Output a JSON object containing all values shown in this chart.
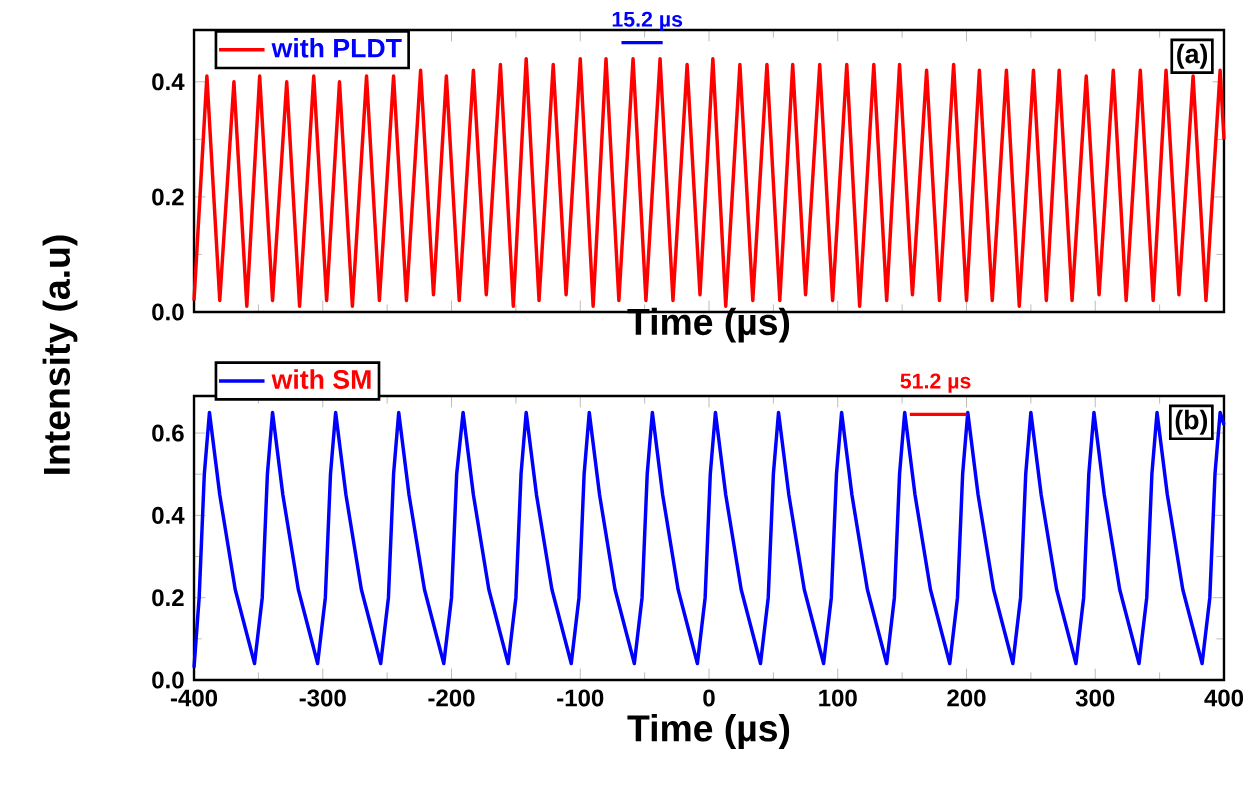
{
  "chart_data": [
    {
      "type": "line",
      "xlabel": "Time (µs)",
      "ylabel": "Intensity (a.u)",
      "legend": "top left",
      "tick_labels": "y",
      "xlim": [
        -400,
        400
      ],
      "xticks": [
        -400,
        -300,
        -200,
        -100,
        0,
        100,
        200,
        300,
        400
      ],
      "ylim": [
        0,
        0.49
      ],
      "yticks": [
        {
          "value": 0,
          "label": "0.0"
        },
        {
          "value": 0.2,
          "label": "0.2"
        },
        {
          "value": 0.4,
          "label": "0.4"
        }
      ],
      "annotations": [
        "15.2 µs",
        "(a)"
      ],
      "series": [
        {
          "name": "with PLDT",
          "color": "#ff0000",
          "x": [
            -400,
            -390,
            -380,
            -369,
            -359,
            -349,
            -339,
            -328,
            -318,
            -307,
            -297,
            -287,
            -277,
            -266,
            -256,
            -245,
            -235,
            -224,
            -214,
            -204,
            -194,
            -183,
            -173,
            -162,
            -152,
            -142,
            -132,
            -121,
            -111,
            -100,
            -90,
            -80,
            -70,
            -59,
            -49,
            -38,
            -28,
            -17,
            -7,
            3,
            13,
            24,
            34,
            45,
            55,
            65,
            75,
            86,
            96,
            107,
            117,
            128,
            138,
            148,
            158,
            169,
            179,
            190,
            200,
            210,
            220,
            231,
            241,
            252,
            262,
            272,
            282,
            293,
            303,
            314,
            324,
            335,
            345,
            355,
            365,
            376,
            386,
            397,
            400
          ],
          "values": [
            0.02,
            0.41,
            0.02,
            0.4,
            0.01,
            0.41,
            0.02,
            0.4,
            0.01,
            0.41,
            0.02,
            0.4,
            0.01,
            0.41,
            0.02,
            0.41,
            0.02,
            0.42,
            0.03,
            0.41,
            0.02,
            0.42,
            0.03,
            0.43,
            0.01,
            0.44,
            0.02,
            0.43,
            0.03,
            0.44,
            0.01,
            0.44,
            0.02,
            0.44,
            0.02,
            0.44,
            0.02,
            0.43,
            0.03,
            0.44,
            0.01,
            0.43,
            0.02,
            0.43,
            0.02,
            0.43,
            0.03,
            0.43,
            0.02,
            0.43,
            0.01,
            0.43,
            0.02,
            0.43,
            0.03,
            0.42,
            0.02,
            0.43,
            0.02,
            0.42,
            0.02,
            0.42,
            0.01,
            0.42,
            0.02,
            0.42,
            0.02,
            0.41,
            0.03,
            0.42,
            0.02,
            0.42,
            0.02,
            0.42,
            0.03,
            0.41,
            0.02,
            0.42,
            0.3
          ]
        }
      ]
    },
    {
      "type": "line",
      "xlabel": "Time (µs)",
      "legend": "top left",
      "xlim": [
        -400,
        400
      ],
      "xticks": [
        -400,
        -300,
        -200,
        -100,
        0,
        100,
        200,
        300,
        400
      ],
      "ylim": [
        0,
        0.69
      ],
      "yticks": [
        {
          "value": 0,
          "label": "0.0"
        },
        {
          "value": 0.2,
          "label": "0.2"
        },
        {
          "value": 0.4,
          "label": "0.4"
        },
        {
          "value": 0.6,
          "label": "0.6"
        }
      ],
      "annotations": [
        "51.2 µs",
        "(b)"
      ],
      "series": [
        {
          "name": "with SM",
          "color": "#0000ff",
          "x": [
            -400,
            -396,
            -392,
            -388,
            -380,
            -368,
            -353,
            -347,
            -343,
            -339,
            -331,
            -319,
            -304,
            -298,
            -294,
            -290,
            -282,
            -270,
            -255,
            -249,
            -245,
            -241,
            -233,
            -221,
            -206,
            -200,
            -196,
            -191,
            -183,
            -171,
            -156,
            -150,
            -146,
            -142,
            -134,
            -122,
            -107,
            -101,
            -97,
            -93,
            -85,
            -73,
            -58,
            -52,
            -48,
            -44,
            -36,
            -24,
            -9,
            -3,
            1,
            5,
            13,
            25,
            40,
            46,
            50,
            54,
            62,
            74,
            89,
            95,
            99,
            103,
            111,
            123,
            138,
            144,
            148,
            152,
            160,
            172,
            187,
            193,
            197,
            201,
            209,
            221,
            236,
            242,
            246,
            250,
            258,
            270,
            285,
            291,
            295,
            299,
            307,
            319,
            334,
            340,
            344,
            348,
            356,
            368,
            383,
            389,
            393,
            397,
            400
          ],
          "values": [
            0.03,
            0.2,
            0.5,
            0.65,
            0.45,
            0.22,
            0.04,
            0.2,
            0.5,
            0.65,
            0.45,
            0.22,
            0.04,
            0.2,
            0.5,
            0.65,
            0.45,
            0.22,
            0.04,
            0.2,
            0.5,
            0.65,
            0.45,
            0.22,
            0.04,
            0.2,
            0.5,
            0.65,
            0.45,
            0.22,
            0.04,
            0.2,
            0.5,
            0.65,
            0.45,
            0.22,
            0.04,
            0.2,
            0.5,
            0.65,
            0.45,
            0.22,
            0.04,
            0.2,
            0.5,
            0.65,
            0.45,
            0.22,
            0.04,
            0.2,
            0.5,
            0.65,
            0.45,
            0.22,
            0.04,
            0.2,
            0.5,
            0.65,
            0.45,
            0.22,
            0.04,
            0.2,
            0.5,
            0.65,
            0.45,
            0.22,
            0.04,
            0.2,
            0.5,
            0.65,
            0.45,
            0.22,
            0.04,
            0.2,
            0.5,
            0.65,
            0.45,
            0.22,
            0.04,
            0.2,
            0.5,
            0.65,
            0.45,
            0.22,
            0.04,
            0.2,
            0.5,
            0.65,
            0.45,
            0.22,
            0.04,
            0.2,
            0.5,
            0.65,
            0.45,
            0.22,
            0.04,
            0.2,
            0.5,
            0.65,
            0.62
          ]
        }
      ]
    }
  ]
}
